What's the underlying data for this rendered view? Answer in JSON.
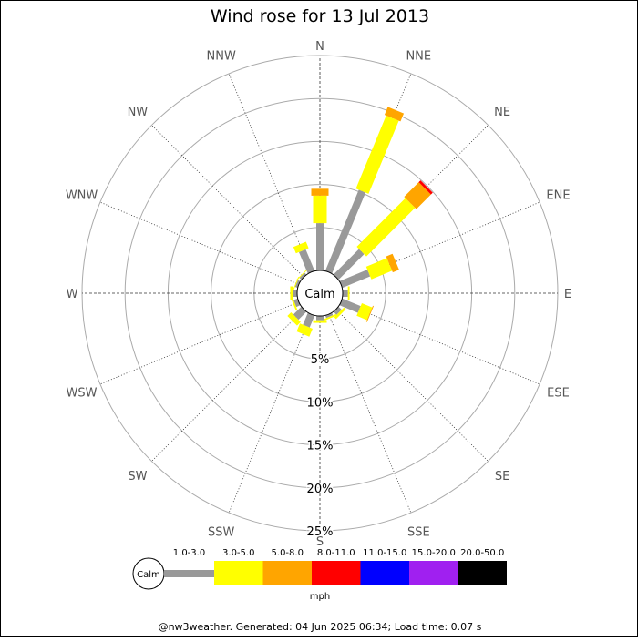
{
  "chart_data": {
    "type": "windrose",
    "title": "Wind rose for 13 Jul 2013",
    "calm_label": "Calm",
    "legend_calm_label": "Calm",
    "units": "mph",
    "footer": "@nw3weather. Generated: 04 Jun 2025 06:34; Load time: 0.07 s",
    "categories": [
      "N",
      "NNE",
      "NE",
      "ENE",
      "E",
      "ESE",
      "SE",
      "SSE",
      "S",
      "SSW",
      "SW",
      "WSW",
      "W",
      "WNW",
      "NW",
      "NNW"
    ],
    "rlim": [
      0,
      25
    ],
    "rticks": [
      {
        "value": 5,
        "label": "5%"
      },
      {
        "value": 10,
        "label": "10%"
      },
      {
        "value": 15,
        "label": "15%"
      },
      {
        "value": 20,
        "label": "20%"
      },
      {
        "value": 25,
        "label": "25%"
      }
    ],
    "grid": true,
    "series": [
      {
        "name": "1.0-3.0",
        "color": "#999999",
        "values": [
          5.5,
          10.2,
          4.2,
          3.5,
          0.6,
          2.3,
          0.5,
          0.3,
          0.5,
          1.5,
          1.3,
          0.5,
          0.5,
          0.3,
          0.3,
          2.7
        ]
      },
      {
        "name": "3.0-5.0",
        "color": "#ffff00",
        "values": [
          3.2,
          9.2,
          8.0,
          2.6,
          0.2,
          1.3,
          0.3,
          0.2,
          0.3,
          1.0,
          0.6,
          0.2,
          0.3,
          0.1,
          0.1,
          0.8
        ]
      },
      {
        "name": "5.0-8.0",
        "color": "#ffa500",
        "values": [
          0.8,
          1.0,
          2.4,
          0.8,
          0,
          0.1,
          0,
          0,
          0,
          0,
          0,
          0,
          0,
          0,
          0,
          0
        ]
      },
      {
        "name": "8.0-11.0",
        "color": "#ff0000",
        "values": [
          0,
          0,
          0.3,
          0,
          0,
          0,
          0,
          0,
          0,
          0,
          0,
          0,
          0,
          0,
          0,
          0
        ]
      },
      {
        "name": "11.0-15.0",
        "color": "#0000ff",
        "values": [
          0,
          0,
          0,
          0,
          0,
          0,
          0,
          0,
          0,
          0,
          0,
          0,
          0,
          0,
          0,
          0
        ]
      },
      {
        "name": "15.0-20.0",
        "color": "#a020f0",
        "values": [
          0,
          0,
          0,
          0,
          0,
          0,
          0,
          0,
          0,
          0,
          0,
          0,
          0,
          0,
          0,
          0
        ]
      },
      {
        "name": "20.0-50.0",
        "color": "#000000",
        "values": [
          0,
          0,
          0,
          0,
          0,
          0,
          0,
          0,
          0,
          0,
          0,
          0,
          0,
          0,
          0,
          0
        ]
      }
    ]
  }
}
